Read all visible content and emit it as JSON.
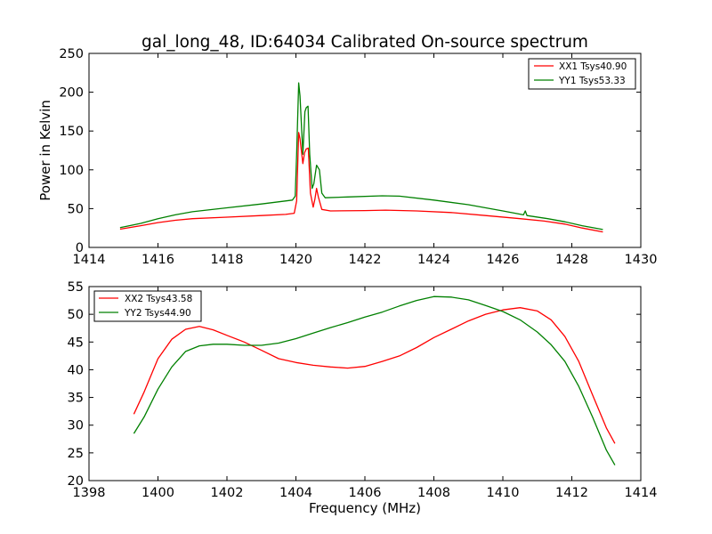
{
  "chart_data": [
    {
      "type": "line",
      "title": "gal_long_48, ID:64034 Calibrated On-source spectrum",
      "xlabel": "",
      "ylabel": "Power in Kelvin",
      "xlim": [
        1414,
        1430
      ],
      "ylim": [
        0,
        250
      ],
      "xticks": [
        "1414",
        "1416",
        "1418",
        "1420",
        "1422",
        "1424",
        "1426",
        "1428",
        "1430"
      ],
      "yticks": [
        "0",
        "50",
        "100",
        "150",
        "200",
        "250"
      ],
      "grid": false,
      "legend_position": "upper right",
      "series": [
        {
          "name": "XX1 Tsys40.90",
          "color": "#ff0000",
          "points": [
            [
              1414.9,
              23.5
            ],
            [
              1415.5,
              28
            ],
            [
              1416.0,
              32
            ],
            [
              1416.5,
              35
            ],
            [
              1417.0,
              37
            ],
            [
              1418.0,
              39
            ],
            [
              1419.0,
              41
            ],
            [
              1419.7,
              42.5
            ],
            [
              1419.95,
              44
            ],
            [
              1420.02,
              60
            ],
            [
              1420.08,
              148
            ],
            [
              1420.12,
              140
            ],
            [
              1420.2,
              108
            ],
            [
              1420.25,
              122
            ],
            [
              1420.3,
              127
            ],
            [
              1420.36,
              128
            ],
            [
              1420.42,
              70
            ],
            [
              1420.5,
              52
            ],
            [
              1420.55,
              62
            ],
            [
              1420.6,
              76
            ],
            [
              1420.65,
              65
            ],
            [
              1420.75,
              49
            ],
            [
              1421.0,
              47
            ],
            [
              1422.0,
              47.5
            ],
            [
              1422.6,
              48
            ],
            [
              1423.5,
              47
            ],
            [
              1424.5,
              45
            ],
            [
              1425.5,
              41
            ],
            [
              1426.5,
              37
            ],
            [
              1427.2,
              34
            ],
            [
              1427.8,
              30
            ],
            [
              1428.3,
              25
            ],
            [
              1428.9,
              20
            ]
          ]
        },
        {
          "name": "YY1 Tsys53.33",
          "color": "#008000",
          "points": [
            [
              1414.9,
              25.5
            ],
            [
              1415.5,
              31
            ],
            [
              1416.0,
              37
            ],
            [
              1416.5,
              42
            ],
            [
              1417.0,
              46
            ],
            [
              1418.0,
              51
            ],
            [
              1419.0,
              56
            ],
            [
              1419.9,
              61
            ],
            [
              1419.98,
              66
            ],
            [
              1420.02,
              120
            ],
            [
              1420.08,
              212
            ],
            [
              1420.12,
              195
            ],
            [
              1420.2,
              120
            ],
            [
              1420.26,
              175
            ],
            [
              1420.3,
              180
            ],
            [
              1420.35,
              182
            ],
            [
              1420.4,
              120
            ],
            [
              1420.47,
              76
            ],
            [
              1420.52,
              82
            ],
            [
              1420.6,
              106
            ],
            [
              1420.68,
              100
            ],
            [
              1420.75,
              70
            ],
            [
              1420.85,
              64
            ],
            [
              1421.5,
              65
            ],
            [
              1422.5,
              66.5
            ],
            [
              1423.0,
              66
            ],
            [
              1424.0,
              61
            ],
            [
              1425.0,
              55
            ],
            [
              1426.0,
              47
            ],
            [
              1426.6,
              42
            ],
            [
              1426.65,
              47
            ],
            [
              1426.7,
              41
            ],
            [
              1427.3,
              37
            ],
            [
              1427.8,
              33
            ],
            [
              1428.3,
              28
            ],
            [
              1428.9,
              23
            ]
          ]
        }
      ]
    },
    {
      "type": "line",
      "title": "",
      "xlabel": "Frequency (MHz)",
      "ylabel": "",
      "xlim": [
        1398,
        1414
      ],
      "ylim": [
        20,
        55
      ],
      "xticks": [
        "1398",
        "1400",
        "1402",
        "1404",
        "1406",
        "1408",
        "1410",
        "1412",
        "1414"
      ],
      "yticks": [
        "20",
        "25",
        "30",
        "35",
        "40",
        "45",
        "50",
        "55"
      ],
      "grid": false,
      "legend_position": "upper left",
      "series": [
        {
          "name": "XX2 Tsys43.58",
          "color": "#ff0000",
          "points": [
            [
              1399.3,
              32
            ],
            [
              1399.6,
              36
            ],
            [
              1400.0,
              42
            ],
            [
              1400.4,
              45.5
            ],
            [
              1400.8,
              47.3
            ],
            [
              1401.2,
              47.8
            ],
            [
              1401.6,
              47.2
            ],
            [
              1402.0,
              46.2
            ],
            [
              1402.5,
              45
            ],
            [
              1403.0,
              43.5
            ],
            [
              1403.5,
              42
            ],
            [
              1404.0,
              41.3
            ],
            [
              1404.5,
              40.8
            ],
            [
              1405.0,
              40.5
            ],
            [
              1405.5,
              40.3
            ],
            [
              1406.0,
              40.6
            ],
            [
              1406.5,
              41.5
            ],
            [
              1407.0,
              42.5
            ],
            [
              1407.5,
              44
            ],
            [
              1408.0,
              45.8
            ],
            [
              1408.5,
              47.3
            ],
            [
              1409.0,
              48.8
            ],
            [
              1409.5,
              50
            ],
            [
              1410.0,
              50.8
            ],
            [
              1410.5,
              51.2
            ],
            [
              1411.0,
              50.6
            ],
            [
              1411.4,
              49
            ],
            [
              1411.8,
              46
            ],
            [
              1412.2,
              41.5
            ],
            [
              1412.6,
              35.5
            ],
            [
              1413.0,
              29.5
            ],
            [
              1413.25,
              26.7
            ]
          ]
        },
        {
          "name": "YY2 Tsys44.90",
          "color": "#008000",
          "points": [
            [
              1399.3,
              28.5
            ],
            [
              1399.6,
              31.5
            ],
            [
              1400.0,
              36.5
            ],
            [
              1400.4,
              40.5
            ],
            [
              1400.8,
              43.3
            ],
            [
              1401.2,
              44.3
            ],
            [
              1401.6,
              44.6
            ],
            [
              1402.0,
              44.6
            ],
            [
              1402.5,
              44.4
            ],
            [
              1403.0,
              44.4
            ],
            [
              1403.5,
              44.8
            ],
            [
              1404.0,
              45.6
            ],
            [
              1404.5,
              46.6
            ],
            [
              1405.0,
              47.6
            ],
            [
              1405.5,
              48.5
            ],
            [
              1406.0,
              49.5
            ],
            [
              1406.5,
              50.4
            ],
            [
              1407.0,
              51.5
            ],
            [
              1407.5,
              52.5
            ],
            [
              1408.0,
              53.2
            ],
            [
              1408.5,
              53.1
            ],
            [
              1409.0,
              52.6
            ],
            [
              1409.5,
              51.6
            ],
            [
              1410.0,
              50.5
            ],
            [
              1410.5,
              49
            ],
            [
              1411.0,
              46.8
            ],
            [
              1411.4,
              44.5
            ],
            [
              1411.8,
              41.5
            ],
            [
              1412.2,
              37
            ],
            [
              1412.6,
              31.5
            ],
            [
              1413.0,
              25.5
            ],
            [
              1413.25,
              22.8
            ]
          ]
        }
      ]
    }
  ]
}
